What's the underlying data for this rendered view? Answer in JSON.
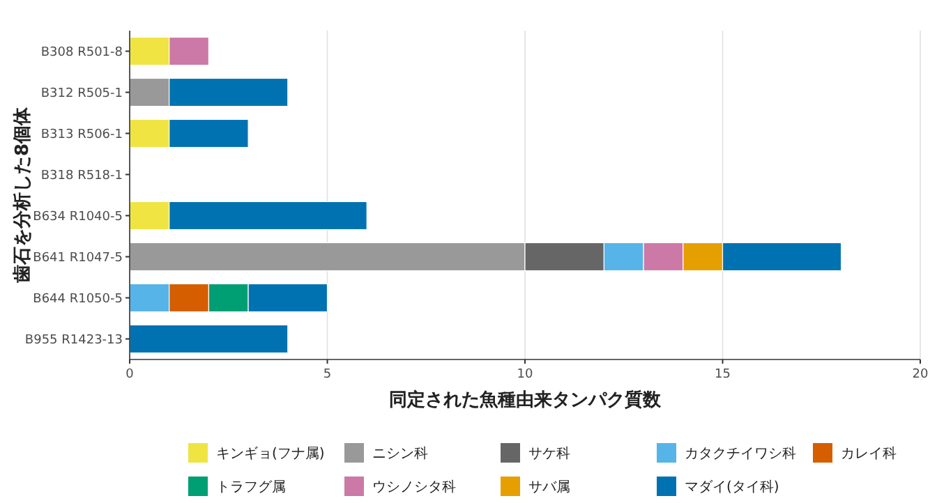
{
  "chart_data": {
    "type": "bar",
    "orientation": "horizontal",
    "stacked": true,
    "xlabel": "同定された魚種由来タンパク質数",
    "ylabel": "歯石を分析した8個体",
    "categories": [
      "B308 R501-8",
      "B312 R505-1",
      "B313 R506-1",
      "B318 R518-1",
      "B634 R1040-5",
      "B641 R1047-5",
      "B644 R1050-5",
      "B955 R1423-13"
    ],
    "xlim": [
      0,
      20
    ],
    "xticks": [
      0,
      5,
      10,
      15,
      20
    ],
    "grid": "x",
    "legend": "bottom",
    "series": [
      {
        "name": "キンギョ(フナ属)",
        "color": "#f0e442",
        "values": [
          1,
          null,
          1,
          null,
          1,
          null,
          null,
          null
        ]
      },
      {
        "name": "ニシン科",
        "color": "#999999",
        "values": [
          null,
          1,
          null,
          null,
          null,
          10,
          null,
          null
        ]
      },
      {
        "name": "サケ科",
        "color": "#666666",
        "values": [
          null,
          null,
          null,
          null,
          null,
          2,
          null,
          null
        ]
      },
      {
        "name": "カタクチイワシ科",
        "color": "#56b4e9",
        "values": [
          null,
          null,
          null,
          null,
          null,
          1,
          1,
          null
        ]
      },
      {
        "name": "カレイ科",
        "color": "#d55e00",
        "values": [
          null,
          null,
          null,
          null,
          null,
          null,
          1,
          null
        ]
      },
      {
        "name": "トラフグ属",
        "color": "#009e73",
        "values": [
          null,
          null,
          null,
          null,
          null,
          null,
          1,
          null
        ]
      },
      {
        "name": "ウシノシタ科",
        "color": "#cc79a7",
        "values": [
          1,
          null,
          null,
          null,
          null,
          1,
          null,
          null
        ]
      },
      {
        "name": "サバ属",
        "color": "#e69f00",
        "values": [
          null,
          null,
          null,
          null,
          null,
          1,
          null,
          null
        ]
      },
      {
        "name": "マダイ(タイ科)",
        "color": "#0072b2",
        "values": [
          null,
          3,
          2,
          null,
          5,
          3,
          2,
          4
        ]
      }
    ]
  }
}
